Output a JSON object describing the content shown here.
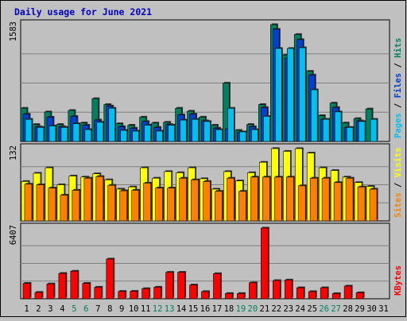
{
  "chart_data": {
    "type": "bar",
    "title": "Daily usage for June 2021",
    "categories": [
      "1",
      "2",
      "3",
      "4",
      "5",
      "6",
      "7",
      "8",
      "9",
      "10",
      "11",
      "12",
      "13",
      "14",
      "15",
      "16",
      "17",
      "18",
      "19",
      "20",
      "21",
      "22",
      "23",
      "24",
      "25",
      "26",
      "27",
      "28",
      "29",
      "30",
      "31"
    ],
    "weekend_days": [
      "5",
      "6",
      "12",
      "13",
      "19",
      "20",
      "26",
      "27"
    ],
    "panels": [
      {
        "id": "hits",
        "max_label": "1583",
        "ylim": [
          0,
          1583
        ],
        "legend": [
          {
            "label": "Pages",
            "color": "#00c0f0"
          },
          {
            "label": "Files",
            "color": "#0040d0"
          },
          {
            "label": "Hits",
            "color": "#008060"
          }
        ],
        "series": [
          {
            "name": "Hits",
            "color": "#008060",
            "values": [
              450,
              230,
              400,
              230,
              420,
              250,
              580,
              500,
              240,
              220,
              330,
              250,
              260,
              450,
              410,
              330,
              220,
              790,
              150,
              230,
              500,
              1583,
              1170,
              1450,
              950,
              350,
              520,
              250,
              310,
              440,
              0
            ]
          },
          {
            "name": "Files",
            "color": "#0040d0",
            "values": [
              370,
              200,
              330,
              200,
              340,
              220,
              290,
              480,
              200,
              180,
              270,
              190,
              230,
              360,
              370,
              280,
              180,
              170,
              120,
              200,
              460,
              1520,
              1130,
              1380,
              900,
              300,
              460,
              190,
              280,
              0,
              0
            ]
          },
          {
            "name": "Pages",
            "color": "#00c0f0",
            "values": [
              300,
              190,
              210,
              190,
              240,
              160,
              260,
              450,
              150,
              140,
              220,
              140,
              220,
              290,
              300,
              270,
              160,
              450,
              130,
              160,
              340,
              1260,
              1260,
              1270,
              700,
              300,
              400,
              190,
              270,
              300,
              0
            ]
          }
        ]
      },
      {
        "id": "sites",
        "max_label": "132",
        "ylim": [
          0,
          132
        ],
        "legend": [
          {
            "label": "Sites",
            "color": "#ff8000"
          },
          {
            "label": "Visits",
            "color": "#ffff00"
          }
        ],
        "series": [
          {
            "name": "Visits",
            "color": "#ffff00",
            "values": [
              72,
              87,
              97,
              66,
              82,
              80,
              86,
              75,
              58,
              62,
              97,
              78,
              90,
              88,
              97,
              77,
              58,
              90,
              73,
              88,
              107,
              132,
              127,
              132,
              124,
              97,
              92,
              80,
              70,
              63,
              0
            ]
          },
          {
            "name": "Sites",
            "color": "#ff8000",
            "values": [
              67,
              66,
              60,
              47,
              56,
              78,
              81,
              65,
              55,
              56,
              69,
              60,
              60,
              78,
              75,
              72,
              54,
              78,
              54,
              80,
              80,
              80,
              80,
              64,
              78,
              78,
              70,
              78,
              62,
              58,
              0
            ]
          }
        ]
      },
      {
        "id": "kbytes",
        "max_label": "6407",
        "ylim": [
          0,
          6407
        ],
        "legend": [
          {
            "label": "KBytes",
            "color": "#ff0000"
          }
        ],
        "series": [
          {
            "name": "KBytes",
            "color": "#ff0000",
            "values": [
              1400,
              580,
              1350,
              2300,
              2500,
              1400,
              1050,
              3600,
              670,
              680,
              920,
              1050,
              2400,
              2400,
              1250,
              650,
              2280,
              480,
              480,
              1450,
              6407,
              1650,
              1700,
              1000,
              650,
              1000,
              470,
              1150,
              550,
              0,
              0
            ]
          }
        ]
      }
    ]
  }
}
